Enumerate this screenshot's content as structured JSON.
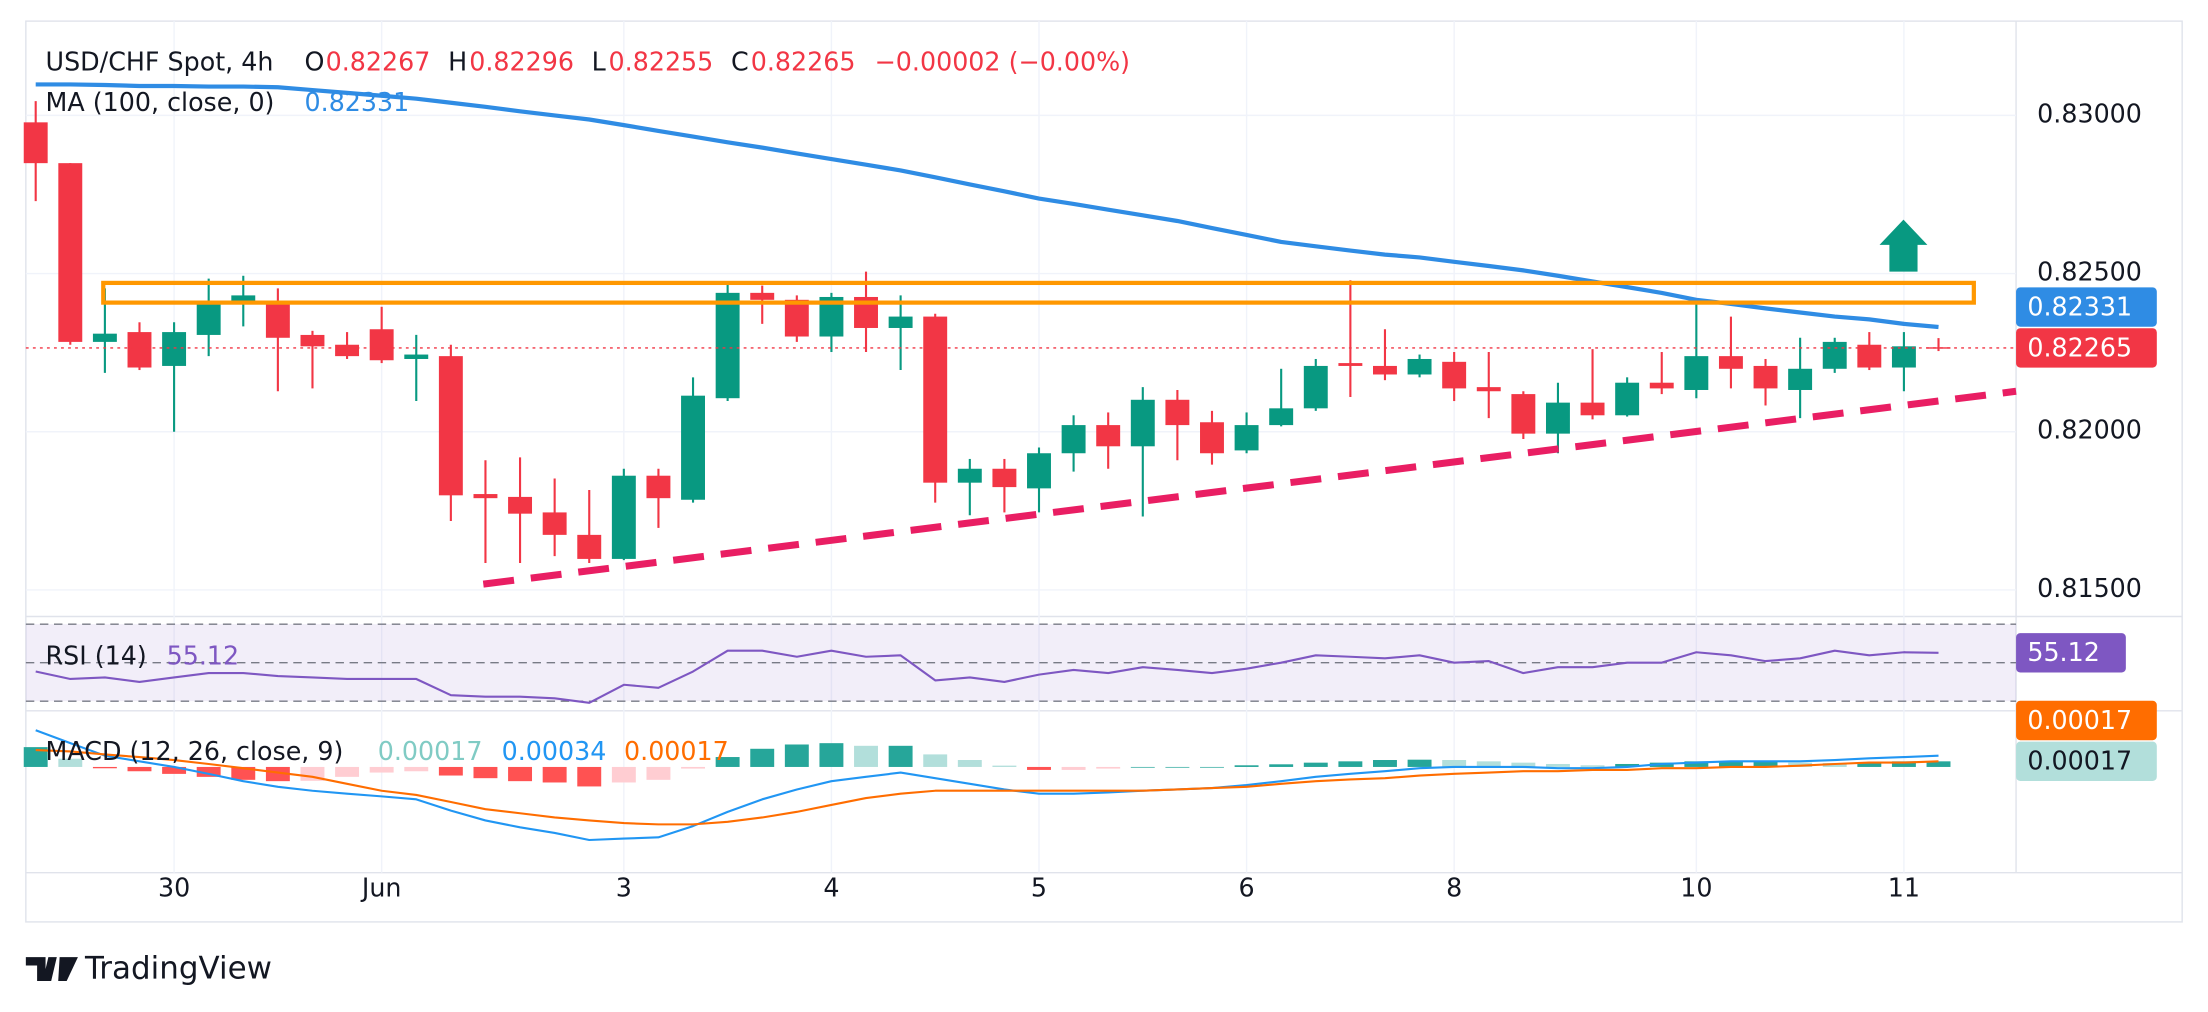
{
  "chart_data": [
    {
      "type": "candlestick",
      "title": "USD/CHF Spot, 4h",
      "ohlc_labels": [
        "O",
        "H",
        "L",
        "C"
      ],
      "change": "−0.00002 (−0.00%)",
      "categories": [
        null,
        null,
        null,
        null,
        "30",
        null,
        null,
        null,
        null,
        null,
        "Jun",
        null,
        null,
        null,
        null,
        null,
        null,
        "3",
        null,
        null,
        null,
        null,
        null,
        "4",
        null,
        null,
        null,
        null,
        null,
        "5",
        null,
        null,
        null,
        null,
        null,
        "6",
        null,
        null,
        null,
        null,
        null,
        "8",
        null,
        null,
        null,
        null,
        null,
        null,
        "10",
        null,
        null,
        null,
        null,
        null,
        "11",
        null
      ],
      "open": [
        0.82978,
        0.82849,
        0.82284,
        0.82315,
        0.82208,
        0.82306,
        0.82413,
        0.82413,
        0.82306,
        0.82275,
        0.82324,
        0.8223,
        0.82239,
        0.81803,
        0.81794,
        0.81745,
        0.81674,
        0.81598,
        0.81861,
        0.81785,
        0.82106,
        0.82439,
        0.82417,
        0.82301,
        0.82426,
        0.82328,
        0.82364,
        0.81839,
        0.81883,
        0.81821,
        0.81932,
        0.82021,
        0.81954,
        0.82101,
        0.8203,
        0.81941,
        0.82021,
        0.82074,
        0.82217,
        0.82208,
        0.82181,
        0.82221,
        0.82141,
        0.82119,
        0.81994,
        0.82092,
        0.82052,
        0.82155,
        0.82132,
        0.82239,
        0.82208,
        0.82132,
        0.82199,
        0.82275,
        0.82203,
        0.82267
      ],
      "high": [
        0.83045,
        0.82849,
        0.82453,
        0.82346,
        0.82346,
        0.82484,
        0.82493,
        0.82453,
        0.82319,
        0.82315,
        0.82395,
        0.82306,
        0.82275,
        0.8191,
        0.81919,
        0.81852,
        0.81816,
        0.81883,
        0.81883,
        0.82172,
        0.82475,
        0.82462,
        0.82431,
        0.82439,
        0.82506,
        0.82431,
        0.82373,
        0.81914,
        0.81914,
        0.8195,
        0.82052,
        0.82061,
        0.82141,
        0.82132,
        0.82066,
        0.82061,
        0.82199,
        0.8223,
        0.82479,
        0.82324,
        0.82244,
        0.82252,
        0.82252,
        0.82128,
        0.82155,
        0.82261,
        0.82172,
        0.82252,
        0.82422,
        0.82364,
        0.8223,
        0.82297,
        0.82297,
        0.82315,
        0.82315,
        0.82296
      ],
      "low": [
        0.82729,
        0.82275,
        0.82186,
        0.82195,
        0.82,
        0.82239,
        0.82333,
        0.82128,
        0.82137,
        0.8223,
        0.82217,
        0.82097,
        0.81718,
        0.81585,
        0.81585,
        0.81607,
        0.81585,
        0.81594,
        0.81696,
        0.81776,
        0.82097,
        0.82341,
        0.82284,
        0.82252,
        0.82252,
        0.82195,
        0.81776,
        0.81736,
        0.81745,
        0.81745,
        0.81874,
        0.81883,
        0.81732,
        0.8191,
        0.81896,
        0.81932,
        0.82017,
        0.82066,
        0.8211,
        0.82163,
        0.82172,
        0.82097,
        0.82043,
        0.81977,
        0.81932,
        0.82039,
        0.82048,
        0.82119,
        0.82106,
        0.82137,
        0.82083,
        0.82043,
        0.82186,
        0.82195,
        0.82128,
        0.82255
      ],
      "close": [
        0.82849,
        0.82284,
        0.8231,
        0.82203,
        0.82315,
        0.82413,
        0.82431,
        0.82297,
        0.8227,
        0.82239,
        0.82226,
        0.82244,
        0.81799,
        0.8179,
        0.81741,
        0.81674,
        0.81598,
        0.81861,
        0.8179,
        0.82114,
        0.82439,
        0.82417,
        0.82301,
        0.82426,
        0.82328,
        0.82364,
        0.81839,
        0.81883,
        0.81825,
        0.81932,
        0.82021,
        0.81954,
        0.82101,
        0.82021,
        0.81932,
        0.82021,
        0.82074,
        0.82208,
        0.82208,
        0.82181,
        0.8223,
        0.82137,
        0.82128,
        0.81994,
        0.82092,
        0.82052,
        0.82155,
        0.82137,
        0.82239,
        0.82199,
        0.82137,
        0.82199,
        0.82284,
        0.82203,
        0.8227,
        0.82265
      ],
      "up_color": "#089981",
      "down_color": "#f23645",
      "ylim": [
        0.81416,
        0.83298
      ],
      "yticks": [
        {
          "value": 0.815,
          "label": "0.81500"
        },
        {
          "value": 0.82,
          "label": "0.82000"
        },
        {
          "value": 0.825,
          "label": "0.82500"
        },
        {
          "value": 0.83,
          "label": "0.83000"
        }
      ],
      "overlays": [
        {
          "name": "MA (100, close, 0)",
          "color": "#2f8ce4",
          "values": [
            0.83098,
            0.83098,
            0.83096,
            0.83093,
            0.83093,
            0.83091,
            0.83091,
            0.83089,
            0.8308,
            0.83071,
            0.83062,
            0.83053,
            0.8304,
            0.83027,
            0.83013,
            0.83,
            0.82987,
            0.82969,
            0.82951,
            0.82933,
            0.82915,
            0.82898,
            0.8288,
            0.82862,
            0.82844,
            0.82826,
            0.82804,
            0.82782,
            0.8276,
            0.82737,
            0.8272,
            0.82702,
            0.82684,
            0.82666,
            0.82644,
            0.82622,
            0.826,
            0.82586,
            0.82573,
            0.8256,
            0.82551,
            0.82537,
            0.82524,
            0.8251,
            0.82493,
            0.82475,
            0.82457,
            0.82439,
            0.82417,
            0.82404,
            0.8239,
            0.82377,
            0.82364,
            0.82355,
            0.82341,
            0.82331
          ]
        }
      ],
      "last_price_line": true
    },
    {
      "type": "line",
      "series": [
        {
          "name": "RSI (14)",
          "color": "#7e57c2",
          "values": [
            45.4,
            41.5,
            42.3,
            40.0,
            42.3,
            44.6,
            44.6,
            43.1,
            42.3,
            41.5,
            41.5,
            41.5,
            33.1,
            32.3,
            32.3,
            31.5,
            29.2,
            38.5,
            36.9,
            45.4,
            56.2,
            56.2,
            53.1,
            56.2,
            53.1,
            53.8,
            40.8,
            42.3,
            40.0,
            43.8,
            46.2,
            44.6,
            47.7,
            46.2,
            44.6,
            46.9,
            50.0,
            53.8,
            53.1,
            52.3,
            53.8,
            50.0,
            50.8,
            44.6,
            47.7,
            47.7,
            50.0,
            50.0,
            55.4,
            53.8,
            50.8,
            52.3,
            56.2,
            53.8,
            55.4,
            55.12
          ]
        }
      ],
      "levels": [
        30,
        50,
        70
      ],
      "band_color": "#7e57c2",
      "ylim": [
        25,
        74
      ]
    },
    {
      "type": "macd",
      "title": "MACD (12, 26, close, 9)",
      "histogram": {
        "values": [
          0.0006,
          0.00025,
          -4e-05,
          -0.00013,
          -0.00021,
          -0.0003,
          -0.00039,
          -0.00043,
          -0.00042,
          -0.0003,
          -0.00017,
          -0.00013,
          -0.00026,
          -0.00034,
          -0.00043,
          -0.00047,
          -0.00059,
          -0.00047,
          -0.00039,
          -5e-05,
          0.0003,
          0.00055,
          0.00068,
          0.00072,
          0.00064,
          0.00064,
          0.00038,
          0.00021,
          4e-05,
          -9e-05,
          -9e-05,
          -5e-05,
          0,
          0,
          0,
          5e-05,
          8e-05,
          0.00013,
          0.00017,
          0.00021,
          0.00022,
          0.00021,
          0.00017,
          0.00013,
          9e-05,
          5e-05,
          9e-05,
          0.00013,
          0.00017,
          0.00017,
          0.00017,
          0.00013,
          0.00012,
          0.00013,
          0.00017,
          0.00017
        ],
        "colors": {
          "grow_above": "#26a69a",
          "fall_above": "#b2dfdb",
          "grow_below": "#ffcdd2",
          "fall_below": "#ff5252"
        }
      },
      "series": [
        {
          "color": "#2196f3",
          "values": [
            0.00111,
            0.00072,
            0.00034,
            0.00017,
            0,
            -0.00021,
            -0.00043,
            -0.0006,
            -0.00072,
            -0.00081,
            -0.00089,
            -0.00098,
            -0.00132,
            -0.00162,
            -0.00183,
            -0.002,
            -0.00221,
            -0.00217,
            -0.00213,
            -0.00179,
            -0.00136,
            -0.00098,
            -0.00068,
            -0.00043,
            -0.0003,
            -0.00017,
            -0.00034,
            -0.00051,
            -0.00068,
            -0.00081,
            -0.00081,
            -0.00077,
            -0.00072,
            -0.00068,
            -0.00064,
            -0.00055,
            -0.00043,
            -0.0003,
            -0.00021,
            -0.00013,
            -4e-05,
            0,
            0,
            0,
            -4e-05,
            -4e-05,
            0,
            9e-05,
            0.00013,
            0.00017,
            0.00017,
            0.00017,
            0.00021,
            0.00026,
            0.0003,
            0.00034
          ]
        },
        {
          "color": "#ff6d00",
          "values": [
            0.00051,
            0.00047,
            0.00038,
            0.0003,
            0.00021,
            9e-05,
            -4e-05,
            -0.00017,
            -0.0003,
            -0.00051,
            -0.00072,
            -0.00085,
            -0.00106,
            -0.00128,
            -0.0014,
            -0.00153,
            -0.00162,
            -0.0017,
            -0.00174,
            -0.00174,
            -0.00166,
            -0.00153,
            -0.00136,
            -0.00115,
            -0.00094,
            -0.00081,
            -0.00072,
            -0.00072,
            -0.00072,
            -0.00072,
            -0.00072,
            -0.00072,
            -0.00072,
            -0.00068,
            -0.00064,
            -0.0006,
            -0.00051,
            -0.00043,
            -0.00038,
            -0.00034,
            -0.00026,
            -0.00021,
            -0.00017,
            -0.00013,
            -0.00013,
            -9e-05,
            -9e-05,
            -4e-05,
            -4e-05,
            0,
            0,
            4e-05,
            9e-05,
            0.00013,
            0.00013,
            0.00017
          ]
        }
      ],
      "ylim": [
        -0.0032,
        0.0017
      ]
    }
  ],
  "branding": "TradingView"
}
